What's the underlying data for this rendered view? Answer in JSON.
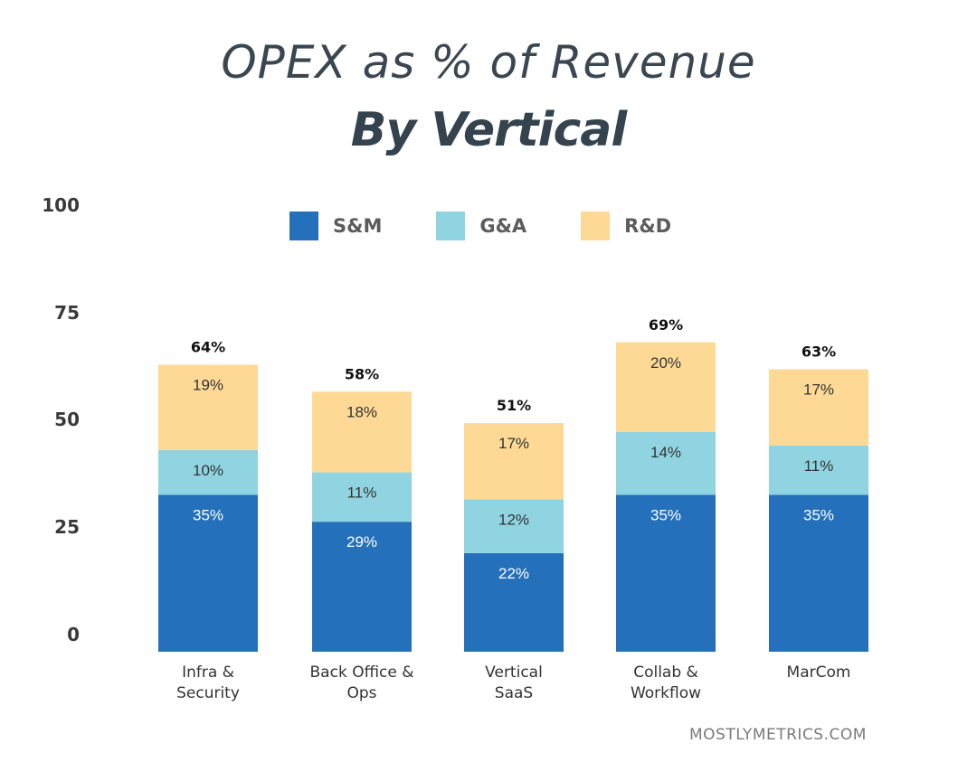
{
  "header": {
    "title": "OPEX as % of Revenue",
    "subtitle": "By Vertical"
  },
  "footer": {
    "watermark": "MOSTLYMETRICS.COM"
  },
  "colors": {
    "sm": "#2570bb",
    "ga": "#8fd4e0",
    "rd": "#fdd995"
  },
  "chart_data": {
    "type": "bar",
    "stacked": true,
    "title": "OPEX as % of Revenue",
    "subtitle": "By Vertical",
    "xlabel": "",
    "ylabel": "",
    "ylim": [
      0,
      100
    ],
    "yticks": [
      "100",
      "75",
      "50",
      "25",
      "0"
    ],
    "grid": false,
    "legend_position": "top",
    "categories": [
      [
        "Infra &",
        "Security"
      ],
      [
        "Back Office &",
        "Ops"
      ],
      [
        "Vertical",
        "SaaS"
      ],
      [
        "Collab &",
        "Workflow"
      ],
      [
        "MarCom"
      ]
    ],
    "series": [
      {
        "name": "S&M",
        "values": [
          35,
          29,
          22,
          35,
          35
        ],
        "labels": [
          "35%",
          "29%",
          "22%",
          "35%",
          "35%"
        ]
      },
      {
        "name": "G&A",
        "values": [
          10,
          11,
          12,
          14,
          11
        ],
        "labels": [
          "10%",
          "11%",
          "12%",
          "14%",
          "11%"
        ]
      },
      {
        "name": "R&D",
        "values": [
          19,
          18,
          17,
          20,
          17
        ],
        "labels": [
          "19%",
          "18%",
          "17%",
          "20%",
          "17%"
        ]
      }
    ],
    "totals": [
      "64%",
      "58%",
      "51%",
      "69%",
      "63%"
    ]
  }
}
